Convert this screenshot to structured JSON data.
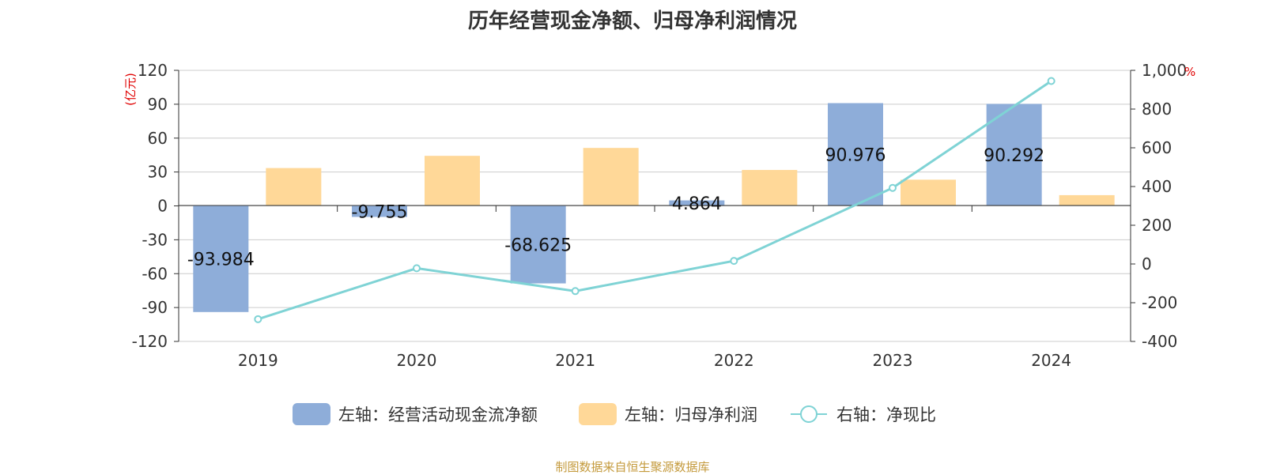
{
  "title": "历年经营现金净额、归母净利润情况",
  "footer": "制图数据来自恒生聚源数据库",
  "left_unit": "(亿元)",
  "right_unit": "%",
  "legend": [
    {
      "label": "左轴：经营活动现金流净额",
      "color": "#8eadd9"
    },
    {
      "label": "左轴：归母净利润",
      "color": "#ffd898"
    },
    {
      "label": "右轴：净现比",
      "color": "#7fd3d5"
    }
  ],
  "chart_data": {
    "type": "bar",
    "categories": [
      "2019",
      "2020",
      "2021",
      "2022",
      "2023",
      "2024"
    ],
    "series": [
      {
        "name": "左轴：经营活动现金流净额",
        "axis": "left",
        "values": [
          -93.984,
          -9.755,
          -68.625,
          4.864,
          90.976,
          90.292
        ],
        "labels": [
          "-93.984",
          "-9.755",
          "-68.625",
          "4.864",
          "90.976",
          "90.292"
        ],
        "color": "#8eadd9"
      },
      {
        "name": "左轴：归母净利润",
        "axis": "left",
        "values": [
          33.5,
          44.3,
          51.3,
          31.8,
          23.2,
          9.5
        ],
        "color": "#ffd898"
      },
      {
        "name": "右轴：净现比",
        "axis": "right",
        "type": "line",
        "values": [
          -285,
          -22,
          -140,
          16,
          393,
          945
        ],
        "color": "#7fd3d5"
      }
    ],
    "left_axis": {
      "ylim": [
        -120,
        120
      ],
      "ticks": [
        "120",
        "90",
        "60",
        "30",
        "0",
        "-30",
        "-60",
        "-90",
        "-120"
      ]
    },
    "right_axis": {
      "ylim": [
        -400,
        1000
      ],
      "ticks": [
        "1,000",
        "800",
        "600",
        "400",
        "200",
        "0",
        "-200",
        "-400"
      ]
    },
    "grid": true,
    "legend_position": "bottom"
  }
}
